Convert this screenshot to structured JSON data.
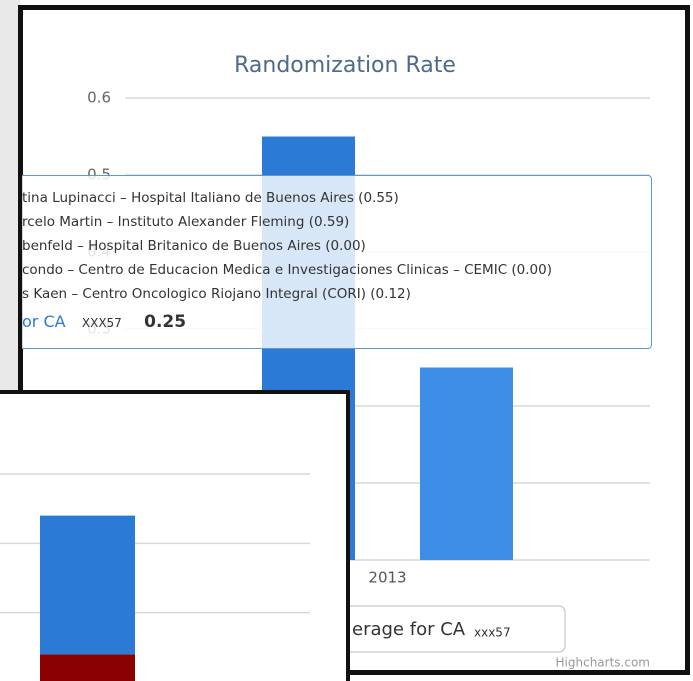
{
  "chart_data": [
    {
      "type": "bar",
      "title": "Randomization Rate",
      "categories": [
        "2013"
      ],
      "series": [
        {
          "color": "#2b7bd6",
          "values": [
            0.55
          ]
        },
        {
          "name": "erage for CA",
          "color": "#3d8ee6",
          "values": [
            0.25
          ]
        }
      ],
      "legend_suffix": "xxx57",
      "ylim": [
        0,
        0.6
      ],
      "yticks": [
        0,
        0.1,
        0.2,
        0.3,
        0.4,
        0.5,
        0.6
      ],
      "grid": true,
      "tooltip": {
        "lines": [
          "tina Lupinacci – Hospital Italiano de Buenos Aires (0.55)",
          "rcelo Martin – Instituto Alexander Fleming (0.59)",
          "benfeld – Hospital Britanico de Buenos Aires (0.00)",
          "condo – Centro de Educacion Medica e Investigaciones Clinicas – CEMIC (0.00)",
          "s Kaen – Centro Oncologico Riojano Integral (CORI) (0.12)"
        ],
        "label": "or CA",
        "id": "XXX57",
        "value": 0.25
      },
      "credits": "Highcharts.com"
    },
    {
      "type": "stacked_bar",
      "categories": [
        null
      ],
      "series": [
        {
          "color": "#8b0000",
          "values": [
            0.04
          ]
        },
        {
          "color": "#2b7bd6",
          "values": [
            0.2
          ]
        }
      ],
      "ylim": [
        0,
        0.3
      ],
      "yticks": [
        0,
        0.1,
        0.2,
        0.3
      ],
      "grid": true
    }
  ]
}
